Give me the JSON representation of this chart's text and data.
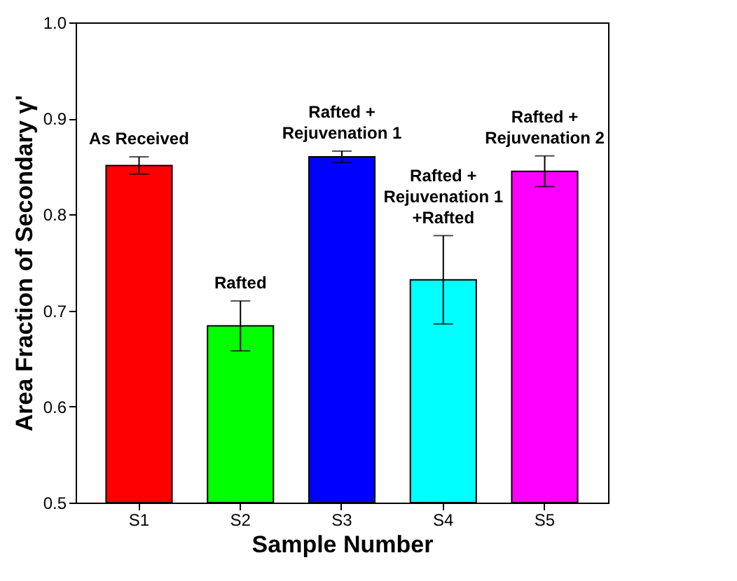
{
  "chart_data": {
    "type": "bar",
    "xlabel": "Sample Number",
    "ylabel": "Area Fraction of Secondary γ'",
    "categories": [
      "S1",
      "S2",
      "S3",
      "S4",
      "S5"
    ],
    "values": [
      0.851,
      0.684,
      0.86,
      0.732,
      0.845
    ],
    "errors": [
      0.009,
      0.026,
      0.006,
      0.046,
      0.016
    ],
    "colors": [
      "#ff0000",
      "#00ff00",
      "#0000ff",
      "#00ffff",
      "#ff00ff"
    ],
    "ylim": [
      0.5,
      1.0
    ],
    "yticks": [
      0.5,
      0.6,
      0.7,
      0.8,
      0.9,
      {
        "value": 1,
        "label": "1.0"
      }
    ],
    "grid": false,
    "annotations": [
      {
        "text": "As Received",
        "x": "S1",
        "y": 0.86
      },
      {
        "text": "Rafted",
        "x": "S2",
        "y": 0.71
      },
      {
        "text": "Rafted +\nRejuvenation 1",
        "x": "S3",
        "y": 0.866
      },
      {
        "text": "Rafted +\nRejuvenation 1\n+Rafted",
        "x": "S4",
        "y": 0.778
      },
      {
        "text": "Rafted +\nRejuvenation 2",
        "x": "S5",
        "y": 0.861
      }
    ]
  }
}
